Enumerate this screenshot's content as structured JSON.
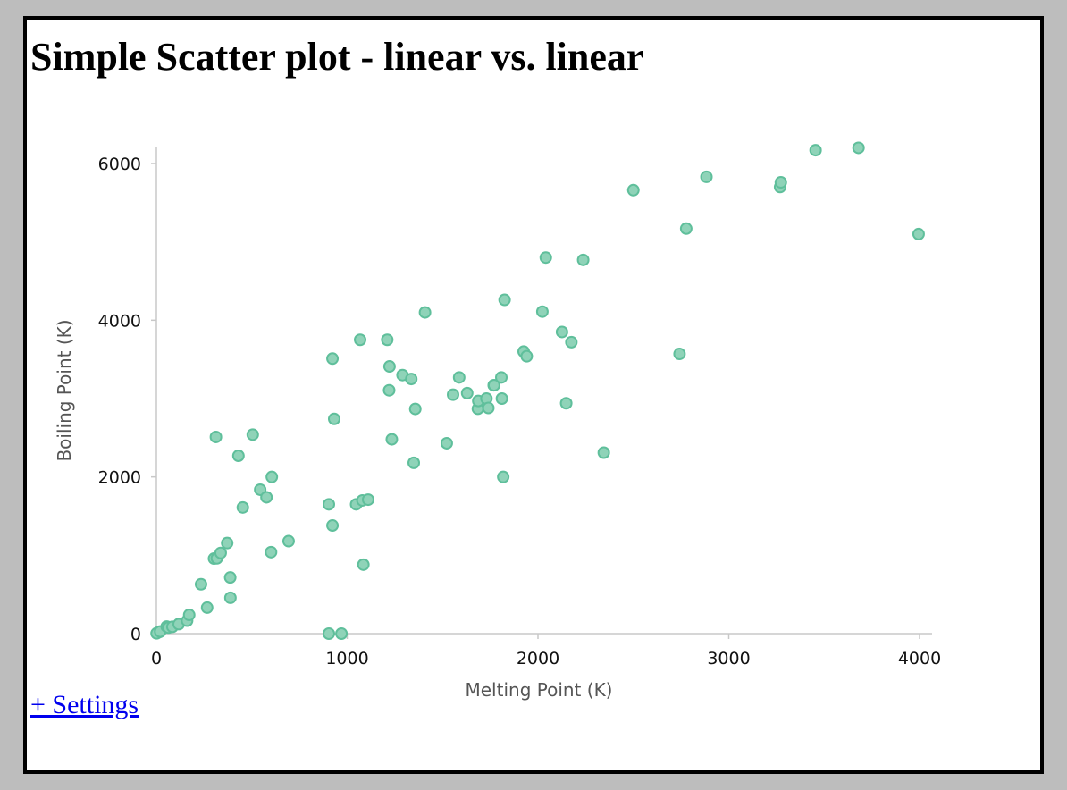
{
  "page": {
    "title": "Simple Scatter plot - linear vs. linear",
    "settings_link": "+ Settings"
  },
  "colors": {
    "background": "#bdbdbd",
    "panel": "#ffffff",
    "point_fill": "#8fd3b8",
    "point_stroke": "#5fbf9b",
    "link": "#0000ee"
  },
  "chart_data": {
    "type": "scatter",
    "title": "Simple Scatter plot - linear vs. linear",
    "xlabel": "Melting Point (K)",
    "ylabel": "Boiling Point (K)",
    "xlim": [
      0,
      4000
    ],
    "ylim": [
      0,
      6000
    ],
    "x_ticks": [
      0,
      1000,
      2000,
      3000,
      4000
    ],
    "y_ticks": [
      0,
      2000,
      4000,
      6000
    ],
    "grid": false,
    "points": [
      [
        14,
        20
      ],
      [
        1,
        4
      ],
      [
        20,
        27
      ],
      [
        54,
        90
      ],
      [
        63,
        77
      ],
      [
        84,
        87
      ],
      [
        117,
        121
      ],
      [
        161,
        165
      ],
      [
        172,
        239
      ],
      [
        234,
        630
      ],
      [
        266,
        332
      ],
      [
        302,
        958
      ],
      [
        312,
        2510
      ],
      [
        317,
        961
      ],
      [
        337,
        1030
      ],
      [
        371,
        1156
      ],
      [
        387,
        717
      ],
      [
        388,
        457
      ],
      [
        430,
        2270
      ],
      [
        453,
        1610
      ],
      [
        505,
        2540
      ],
      [
        544,
        1837
      ],
      [
        577,
        1740
      ],
      [
        601,
        1040
      ],
      [
        605,
        2000
      ],
      [
        693,
        1180
      ],
      [
        923,
        3510
      ],
      [
        904,
        0
      ],
      [
        932,
        2740
      ],
      [
        1068,
        3750
      ],
      [
        1085,
        880
      ],
      [
        904,
        1650
      ],
      [
        1047,
        1650
      ],
      [
        923,
        1380
      ],
      [
        1080,
        1700
      ],
      [
        1110,
        1710
      ],
      [
        1210,
        3750
      ],
      [
        1222,
        3410
      ],
      [
        1220,
        3106
      ],
      [
        1234,
        2480
      ],
      [
        1290,
        3300
      ],
      [
        1336,
        3250
      ],
      [
        1357,
        2868
      ],
      [
        1349,
        2180
      ],
      [
        1408,
        4100
      ],
      [
        1522,
        2430
      ],
      [
        1555,
        3050
      ],
      [
        1587,
        3270
      ],
      [
        1629,
        3070
      ],
      [
        1685,
        2870
      ],
      [
        1687,
        2970
      ],
      [
        1730,
        3000
      ],
      [
        1740,
        2880
      ],
      [
        1768,
        3170
      ],
      [
        1770,
        3170
      ],
      [
        1808,
        3270
      ],
      [
        1811,
        3000
      ],
      [
        1818,
        2000
      ],
      [
        1825,
        4260
      ],
      [
        1925,
        3600
      ],
      [
        1941,
        3540
      ],
      [
        2023,
        4110
      ],
      [
        2041,
        4800
      ],
      [
        2126,
        3850
      ],
      [
        2148,
        2940
      ],
      [
        2175,
        3720
      ],
      [
        2237,
        4770
      ],
      [
        2345,
        2310
      ],
      [
        2500,
        5660
      ],
      [
        2742,
        3570
      ],
      [
        2777,
        5170
      ],
      [
        2883,
        5830
      ],
      [
        3269,
        5700
      ],
      [
        3273,
        5760
      ],
      [
        3455,
        6170
      ],
      [
        3680,
        6200
      ],
      [
        3995,
        5100
      ],
      [
        970,
        0
      ]
    ]
  }
}
